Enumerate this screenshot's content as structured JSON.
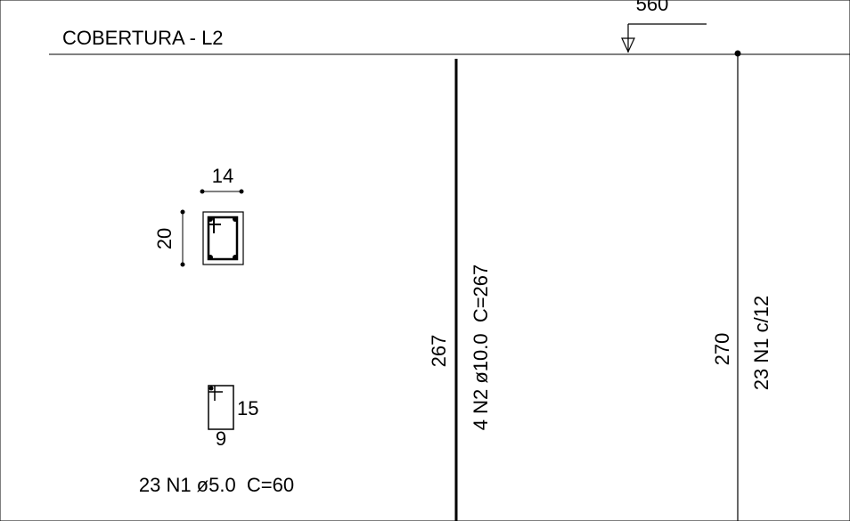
{
  "header": {
    "title": "COBERTURA - L2",
    "level": "560"
  },
  "section": {
    "width": "14",
    "height": "20"
  },
  "bar_n2": {
    "length": "267",
    "label": "4 N2 ø10.0  C=267"
  },
  "stirrups": {
    "length": "270",
    "label": "23 N1 c/12"
  },
  "stirrup_detail": {
    "height": "15",
    "width": "9",
    "label": "23 N1 ø5.0  C=60"
  }
}
